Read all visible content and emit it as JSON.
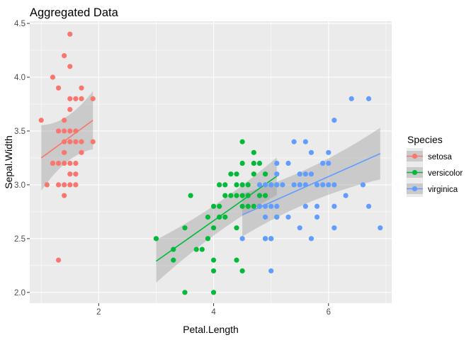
{
  "chart_data": {
    "type": "scatter",
    "title": "Aggregated Data",
    "xlabel": "Petal.Length",
    "ylabel": "Sepal.Width",
    "xlim": [
      0.8,
      7.1
    ],
    "ylim": [
      1.9,
      4.52
    ],
    "x_ticks": [
      2,
      4,
      6
    ],
    "y_ticks": [
      2.0,
      2.5,
      3.0,
      3.5,
      4.0,
      4.5
    ],
    "y_tick_labels": [
      "2.0",
      "2.5",
      "3.0",
      "3.5",
      "4.0",
      "4.5"
    ],
    "grid": true,
    "legend": {
      "title": "Species",
      "position": "right"
    },
    "series": [
      {
        "name": "setosa",
        "color": "#F8766D",
        "fit": {
          "x": [
            1.0,
            1.9
          ],
          "y": [
            3.25,
            3.6
          ],
          "se_lo": [
            2.94,
            3.33
          ],
          "se_hi": [
            3.55,
            3.87
          ]
        },
        "points": [
          [
            1.0,
            3.6
          ],
          [
            1.1,
            3.0
          ],
          [
            1.2,
            3.2
          ],
          [
            1.2,
            4.0
          ],
          [
            1.3,
            3.0
          ],
          [
            1.3,
            3.2
          ],
          [
            1.3,
            3.5
          ],
          [
            1.3,
            3.9
          ],
          [
            1.3,
            2.3
          ],
          [
            1.4,
            3.0
          ],
          [
            1.4,
            3.2
          ],
          [
            1.4,
            3.4
          ],
          [
            1.4,
            3.5
          ],
          [
            1.4,
            3.6
          ],
          [
            1.4,
            2.9
          ],
          [
            1.4,
            4.2
          ],
          [
            1.5,
            3.1
          ],
          [
            1.5,
            3.4
          ],
          [
            1.5,
            3.7
          ],
          [
            1.5,
            4.4
          ],
          [
            1.5,
            4.1
          ],
          [
            1.5,
            3.5
          ],
          [
            1.5,
            3.8
          ],
          [
            1.5,
            3.0
          ],
          [
            1.6,
            3.1
          ],
          [
            1.6,
            3.2
          ],
          [
            1.6,
            3.4
          ],
          [
            1.6,
            3.5
          ],
          [
            1.6,
            3.8
          ],
          [
            1.6,
            3.0
          ],
          [
            1.4,
            3.3
          ],
          [
            1.5,
            3.2
          ],
          [
            1.7,
            3.3
          ],
          [
            1.7,
            3.4
          ],
          [
            1.7,
            3.8
          ],
          [
            1.7,
            3.9
          ],
          [
            1.9,
            3.4
          ],
          [
            1.9,
            3.8
          ]
        ]
      },
      {
        "name": "versicolor",
        "color": "#00BA38",
        "fit": {
          "x": [
            3.0,
            5.1
          ],
          "y": [
            2.29,
            3.08
          ],
          "se_lo": [
            2.09,
            2.91
          ],
          "se_hi": [
            2.49,
            3.26
          ]
        },
        "points": [
          [
            3.0,
            2.5
          ],
          [
            3.3,
            2.3
          ],
          [
            3.3,
            2.4
          ],
          [
            3.5,
            2.0
          ],
          [
            3.5,
            2.6
          ],
          [
            3.6,
            2.9
          ],
          [
            3.7,
            2.4
          ],
          [
            3.8,
            2.4
          ],
          [
            3.9,
            2.5
          ],
          [
            3.9,
            2.7
          ],
          [
            4.0,
            2.0
          ],
          [
            4.0,
            2.2
          ],
          [
            4.0,
            2.3
          ],
          [
            4.0,
            2.6
          ],
          [
            4.0,
            2.8
          ],
          [
            4.1,
            2.7
          ],
          [
            4.1,
            2.8
          ],
          [
            4.1,
            3.0
          ],
          [
            4.2,
            2.7
          ],
          [
            4.2,
            2.9
          ],
          [
            4.2,
            3.0
          ],
          [
            4.3,
            2.9
          ],
          [
            4.3,
            3.1
          ],
          [
            4.4,
            2.3
          ],
          [
            4.4,
            2.6
          ],
          [
            4.4,
            2.9
          ],
          [
            4.4,
            3.0
          ],
          [
            4.4,
            3.1
          ],
          [
            4.5,
            2.2
          ],
          [
            4.5,
            2.8
          ],
          [
            4.5,
            2.9
          ],
          [
            4.5,
            3.0
          ],
          [
            4.5,
            3.2
          ],
          [
            4.5,
            3.4
          ],
          [
            4.6,
            2.8
          ],
          [
            4.6,
            2.9
          ],
          [
            4.6,
            3.0
          ],
          [
            4.7,
            2.8
          ],
          [
            4.7,
            3.1
          ],
          [
            4.7,
            3.2
          ],
          [
            4.7,
            3.3
          ],
          [
            4.8,
            2.8
          ],
          [
            4.8,
            3.2
          ],
          [
            4.9,
            2.5
          ],
          [
            4.9,
            3.1
          ],
          [
            5.0,
            2.5
          ],
          [
            5.0,
            3.0
          ],
          [
            5.1,
            2.7
          ],
          [
            4.9,
            2.9
          ],
          [
            4.8,
            2.9
          ]
        ]
      },
      {
        "name": "virginica",
        "color": "#619CFF",
        "fit": {
          "x": [
            4.5,
            6.9
          ],
          "y": [
            2.72,
            3.29
          ],
          "se_lo": [
            2.52,
            3.05
          ],
          "se_hi": [
            2.92,
            3.53
          ]
        },
        "points": [
          [
            4.5,
            2.5
          ],
          [
            4.8,
            2.8
          ],
          [
            4.8,
            3.0
          ],
          [
            4.9,
            2.5
          ],
          [
            4.9,
            2.8
          ],
          [
            4.9,
            2.7
          ],
          [
            4.9,
            3.0
          ],
          [
            5.0,
            2.2
          ],
          [
            5.0,
            2.5
          ],
          [
            5.0,
            3.0
          ],
          [
            5.0,
            2.8
          ],
          [
            5.1,
            2.7
          ],
          [
            5.1,
            2.8
          ],
          [
            5.1,
            3.0
          ],
          [
            5.1,
            3.1
          ],
          [
            5.1,
            3.2
          ],
          [
            5.2,
            3.0
          ],
          [
            5.3,
            2.7
          ],
          [
            5.3,
            3.2
          ],
          [
            5.4,
            3.0
          ],
          [
            5.4,
            3.4
          ],
          [
            5.5,
            2.6
          ],
          [
            5.5,
            3.0
          ],
          [
            5.5,
            3.1
          ],
          [
            5.6,
            2.8
          ],
          [
            5.6,
            3.0
          ],
          [
            5.6,
            3.1
          ],
          [
            5.6,
            3.4
          ],
          [
            5.7,
            2.5
          ],
          [
            5.7,
            3.1
          ],
          [
            5.7,
            3.3
          ],
          [
            5.8,
            2.7
          ],
          [
            5.8,
            2.8
          ],
          [
            5.8,
            3.0
          ],
          [
            5.9,
            3.0
          ],
          [
            5.9,
            3.2
          ],
          [
            6.0,
            3.0
          ],
          [
            6.0,
            3.3
          ],
          [
            6.0,
            3.2
          ],
          [
            6.1,
            2.6
          ],
          [
            6.1,
            3.0
          ],
          [
            6.1,
            2.8
          ],
          [
            6.1,
            3.6
          ],
          [
            6.3,
            2.9
          ],
          [
            6.4,
            3.8
          ],
          [
            6.6,
            3.0
          ],
          [
            6.7,
            2.8
          ],
          [
            6.7,
            3.8
          ],
          [
            6.9,
            2.6
          ]
        ]
      }
    ]
  }
}
